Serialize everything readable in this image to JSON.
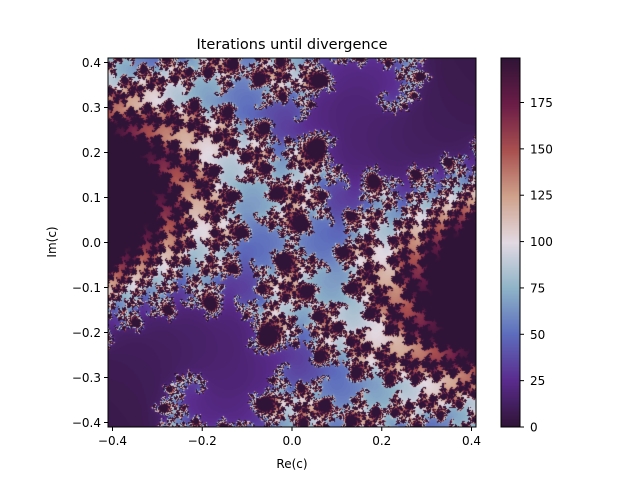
{
  "chart_data": {
    "type": "heatmap",
    "title": "Iterations until divergence",
    "xlabel": "Re(c)",
    "ylabel": "Im(c)",
    "xlim": [
      -0.41,
      0.41
    ],
    "ylim": [
      -0.41,
      0.41
    ],
    "xticks": [
      -0.4,
      -0.2,
      0.0,
      0.2,
      0.4
    ],
    "yticks": [
      -0.4,
      -0.3,
      -0.2,
      -0.1,
      0.0,
      0.1,
      0.2,
      0.3,
      0.4
    ],
    "xtick_labels": [
      "−0.4",
      "−0.2",
      "0.0",
      "0.2",
      "0.4"
    ],
    "ytick_labels": [
      "−0.4",
      "−0.3",
      "−0.2",
      "−0.1",
      "0.0",
      "0.1",
      "0.2",
      "0.3",
      "0.4"
    ],
    "colorbar": {
      "range": [
        0,
        199
      ],
      "ticks": [
        0,
        25,
        50,
        75,
        100,
        125,
        150,
        175
      ],
      "tick_labels": [
        "0",
        "25",
        "50",
        "75",
        "100",
        "125",
        "150",
        "175"
      ],
      "colormap": "twilight_shifted"
    },
    "fractal": {
      "kind": "julia",
      "max_iter": 199
    },
    "grid": false
  },
  "colors": {
    "cmap_stops": [
      "#301437",
      "#5a2c8e",
      "#5d6dbd",
      "#8fb4c8",
      "#e2d9e2",
      "#d0a28c",
      "#a9504f",
      "#6b1d47",
      "#301437"
    ]
  }
}
